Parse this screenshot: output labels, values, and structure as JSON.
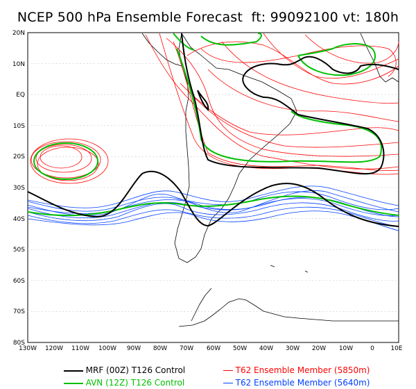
{
  "title": "NCEP 500 hPa Ensemble Forecast  ft: 99092100 vt: 180h",
  "map": {
    "lat_labels": [
      "20N",
      "10N",
      "EQ",
      "10S",
      "20S",
      "30S",
      "40S",
      "50S",
      "60S",
      "70S",
      "80S"
    ],
    "lon_labels": [
      "130W",
      "120W",
      "110W",
      "100W",
      "90W",
      "80W",
      "70W",
      "60W",
      "50W",
      "40W",
      "30W",
      "20W",
      "10W",
      "0",
      "10E"
    ],
    "lat_range": [
      20,
      -80
    ],
    "lon_range": [
      -130,
      10
    ]
  },
  "legend": [
    {
      "label": "MRF (00Z) T126 Control",
      "color": "#000000"
    },
    {
      "label": "AVN (12Z) T126 Control",
      "color": "#00c000"
    },
    {
      "label": "T62 Ensemble Member (5850m)",
      "color": "#ff0000"
    },
    {
      "label": "T62 Ensemble Member (5640m)",
      "color": "#0040ff"
    }
  ]
}
